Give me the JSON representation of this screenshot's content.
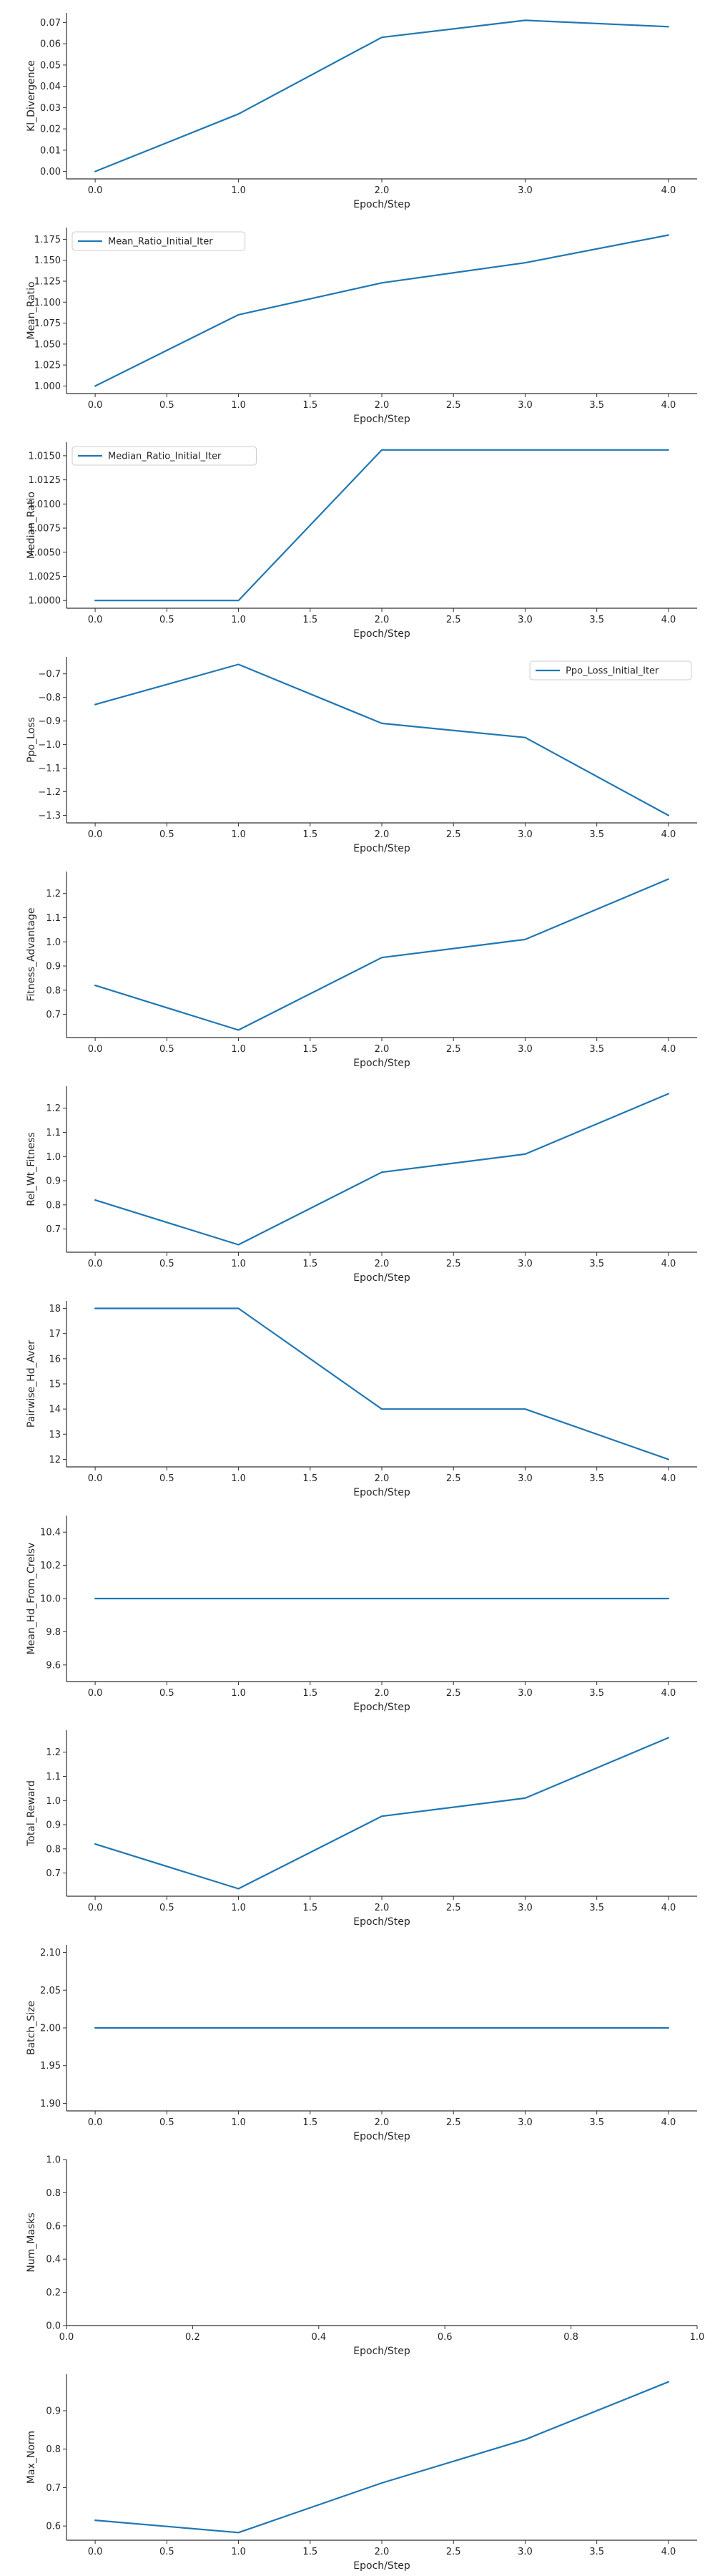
{
  "colors": {
    "series": "#1f77b4",
    "spine": "#333333",
    "text": "#262626"
  },
  "chart_data": [
    {
      "type": "line",
      "name": "kl",
      "x": [
        0,
        1,
        2,
        3,
        4
      ],
      "series": [
        {
          "name": "",
          "values": [
            0.0,
            0.027,
            0.063,
            0.071,
            0.068
          ]
        }
      ],
      "xlabel": "Epoch/Step",
      "ylabel": "Kl_Divergence",
      "xlim": [
        -0.2,
        4.2
      ],
      "ylim": [
        -0.0035,
        0.0745
      ],
      "xticks": [
        0,
        1,
        2,
        3,
        4
      ],
      "xtick_labels": [
        "0.0",
        "1.0",
        "2.0",
        "3.0",
        "4.0"
      ],
      "yticks": [
        0,
        0.01,
        0.02,
        0.03,
        0.04,
        0.05,
        0.06,
        0.07
      ],
      "ytick_labels": [
        "0.00",
        "0.01",
        "0.02",
        "0.03",
        "0.04",
        "0.05",
        "0.06",
        "0.07"
      ],
      "legend": null
    },
    {
      "type": "line",
      "name": "mean-ratio",
      "x": [
        0,
        1,
        2,
        3,
        4
      ],
      "series": [
        {
          "name": "Mean_Ratio_Initial_Iter",
          "values": [
            1.0,
            1.085,
            1.123,
            1.147,
            1.18
          ]
        }
      ],
      "xlabel": "Epoch/Step",
      "ylabel": "Mean_Ratio",
      "xlim": [
        -0.2,
        4.2
      ],
      "ylim": [
        0.991,
        1.189
      ],
      "xticks": [
        0,
        0.5,
        1,
        1.5,
        2,
        2.5,
        3,
        3.5,
        4
      ],
      "xtick_labels": [
        "0.0",
        "0.5",
        "1.0",
        "1.5",
        "2.0",
        "2.5",
        "3.0",
        "3.5",
        "4.0"
      ],
      "yticks": [
        1.0,
        1.025,
        1.05,
        1.075,
        1.1,
        1.125,
        1.15,
        1.175
      ],
      "ytick_labels": [
        "1.000",
        "1.025",
        "1.050",
        "1.075",
        "1.100",
        "1.125",
        "1.150",
        "1.175"
      ],
      "legend": "top-left"
    },
    {
      "type": "line",
      "name": "median-ratio",
      "x": [
        0,
        1,
        2,
        3,
        4
      ],
      "series": [
        {
          "name": "Median_Ratio_Initial_Iter",
          "values": [
            1.0,
            1.0,
            1.0156,
            1.0156,
            1.0156
          ]
        }
      ],
      "xlabel": "Epoch/Step",
      "ylabel": "Median_Ratio",
      "xlim": [
        -0.2,
        4.2
      ],
      "ylim": [
        0.9992,
        1.0164
      ],
      "xticks": [
        0,
        0.5,
        1,
        1.5,
        2,
        2.5,
        3,
        3.5,
        4
      ],
      "xtick_labels": [
        "0.0",
        "0.5",
        "1.0",
        "1.5",
        "2.0",
        "2.5",
        "3.0",
        "3.5",
        "4.0"
      ],
      "yticks": [
        1.0,
        1.0025,
        1.005,
        1.0075,
        1.01,
        1.0125,
        1.015
      ],
      "ytick_labels": [
        "1.0000",
        "1.0025",
        "1.0050",
        "1.0075",
        "1.0100",
        "1.0125",
        "1.0150"
      ],
      "legend": "top-left"
    },
    {
      "type": "line",
      "name": "ppo-loss",
      "x": [
        0,
        1,
        2,
        3,
        4
      ],
      "series": [
        {
          "name": "Ppo_Loss_Initial_Iter",
          "values": [
            -0.83,
            -0.66,
            -0.91,
            -0.97,
            -1.3
          ]
        }
      ],
      "xlabel": "Epoch/Step",
      "ylabel": "Ppo_Loss",
      "xlim": [
        -0.2,
        4.2
      ],
      "ylim": [
        -1.332,
        -0.628
      ],
      "xticks": [
        0,
        0.5,
        1,
        1.5,
        2,
        2.5,
        3,
        3.5,
        4
      ],
      "xtick_labels": [
        "0.0",
        "0.5",
        "1.0",
        "1.5",
        "2.0",
        "2.5",
        "3.0",
        "3.5",
        "4.0"
      ],
      "yticks": [
        -0.7,
        -0.8,
        -0.9,
        -1.0,
        -1.1,
        -1.2,
        -1.3
      ],
      "ytick_labels": [
        "−0.7",
        "−0.8",
        "−0.9",
        "−1.0",
        "−1.1",
        "−1.2",
        "−1.3"
      ],
      "legend": "top-right"
    },
    {
      "type": "line",
      "name": "fitness-advantage",
      "x": [
        0,
        1,
        2,
        3,
        4
      ],
      "series": [
        {
          "name": "",
          "values": [
            0.82,
            0.635,
            0.935,
            1.01,
            1.26
          ]
        }
      ],
      "xlabel": "Epoch/Step",
      "ylabel": "Fitness_Advantage",
      "xlim": [
        -0.2,
        4.2
      ],
      "ylim": [
        0.604,
        1.291
      ],
      "xticks": [
        0,
        0.5,
        1,
        1.5,
        2,
        2.5,
        3,
        3.5,
        4
      ],
      "xtick_labels": [
        "0.0",
        "0.5",
        "1.0",
        "1.5",
        "2.0",
        "2.5",
        "3.0",
        "3.5",
        "4.0"
      ],
      "yticks": [
        0.7,
        0.8,
        0.9,
        1.0,
        1.1,
        1.2
      ],
      "ytick_labels": [
        "0.7",
        "0.8",
        "0.9",
        "1.0",
        "1.1",
        "1.2"
      ],
      "legend": null
    },
    {
      "type": "line",
      "name": "rel-wt-fitness",
      "x": [
        0,
        1,
        2,
        3,
        4
      ],
      "series": [
        {
          "name": "",
          "values": [
            0.82,
            0.635,
            0.935,
            1.01,
            1.26
          ]
        }
      ],
      "xlabel": "Epoch/Step",
      "ylabel": "Rel_Wt_Fitness",
      "xlim": [
        -0.2,
        4.2
      ],
      "ylim": [
        0.604,
        1.291
      ],
      "xticks": [
        0,
        0.5,
        1,
        1.5,
        2,
        2.5,
        3,
        3.5,
        4
      ],
      "xtick_labels": [
        "0.0",
        "0.5",
        "1.0",
        "1.5",
        "2.0",
        "2.5",
        "3.0",
        "3.5",
        "4.0"
      ],
      "yticks": [
        0.7,
        0.8,
        0.9,
        1.0,
        1.1,
        1.2
      ],
      "ytick_labels": [
        "0.7",
        "0.8",
        "0.9",
        "1.0",
        "1.1",
        "1.2"
      ],
      "legend": null
    },
    {
      "type": "line",
      "name": "pairwise-hd",
      "x": [
        0,
        1,
        2,
        3,
        4
      ],
      "series": [
        {
          "name": "",
          "values": [
            18,
            18,
            14,
            14,
            12
          ]
        }
      ],
      "xlabel": "Epoch/Step",
      "ylabel": "Pairwise_Hd_Aver",
      "xlim": [
        -0.2,
        4.2
      ],
      "ylim": [
        11.7,
        18.3
      ],
      "xticks": [
        0,
        0.5,
        1,
        1.5,
        2,
        2.5,
        3,
        3.5,
        4
      ],
      "xtick_labels": [
        "0.0",
        "0.5",
        "1.0",
        "1.5",
        "2.0",
        "2.5",
        "3.0",
        "3.5",
        "4.0"
      ],
      "yticks": [
        12,
        13,
        14,
        15,
        16,
        17,
        18
      ],
      "ytick_labels": [
        "12",
        "13",
        "14",
        "15",
        "16",
        "17",
        "18"
      ],
      "legend": null
    },
    {
      "type": "line",
      "name": "mean-hd-crelsv",
      "x": [
        0,
        1,
        2,
        3,
        4
      ],
      "series": [
        {
          "name": "",
          "values": [
            10,
            10,
            10,
            10,
            10
          ]
        }
      ],
      "xlabel": "Epoch/Step",
      "ylabel": "Mean_Hd_From_Crelsv",
      "xlim": [
        -0.2,
        4.2
      ],
      "ylim": [
        9.5,
        10.5
      ],
      "xticks": [
        0,
        0.5,
        1,
        1.5,
        2,
        2.5,
        3,
        3.5,
        4
      ],
      "xtick_labels": [
        "0.0",
        "0.5",
        "1.0",
        "1.5",
        "2.0",
        "2.5",
        "3.0",
        "3.5",
        "4.0"
      ],
      "yticks": [
        9.6,
        9.8,
        10.0,
        10.2,
        10.4
      ],
      "ytick_labels": [
        "9.6",
        "9.8",
        "10.0",
        "10.2",
        "10.4"
      ],
      "legend": null
    },
    {
      "type": "line",
      "name": "total-reward",
      "x": [
        0,
        1,
        2,
        3,
        4
      ],
      "series": [
        {
          "name": "",
          "values": [
            0.82,
            0.635,
            0.935,
            1.01,
            1.26
          ]
        }
      ],
      "xlabel": "Epoch/Step",
      "ylabel": "Total_Reward",
      "xlim": [
        -0.2,
        4.2
      ],
      "ylim": [
        0.604,
        1.291
      ],
      "xticks": [
        0,
        0.5,
        1,
        1.5,
        2,
        2.5,
        3,
        3.5,
        4
      ],
      "xtick_labels": [
        "0.0",
        "0.5",
        "1.0",
        "1.5",
        "2.0",
        "2.5",
        "3.0",
        "3.5",
        "4.0"
      ],
      "yticks": [
        0.7,
        0.8,
        0.9,
        1.0,
        1.1,
        1.2
      ],
      "ytick_labels": [
        "0.7",
        "0.8",
        "0.9",
        "1.0",
        "1.1",
        "1.2"
      ],
      "legend": null
    },
    {
      "type": "line",
      "name": "batch-size",
      "x": [
        0,
        1,
        2,
        3,
        4
      ],
      "series": [
        {
          "name": "",
          "values": [
            2,
            2,
            2,
            2,
            2
          ]
        }
      ],
      "xlabel": "Epoch/Step",
      "ylabel": "Batch_Size",
      "xlim": [
        -0.2,
        4.2
      ],
      "ylim": [
        1.89,
        2.11
      ],
      "xticks": [
        0,
        0.5,
        1,
        1.5,
        2,
        2.5,
        3,
        3.5,
        4
      ],
      "xtick_labels": [
        "0.0",
        "0.5",
        "1.0",
        "1.5",
        "2.0",
        "2.5",
        "3.0",
        "3.5",
        "4.0"
      ],
      "yticks": [
        1.9,
        1.95,
        2.0,
        2.05,
        2.1
      ],
      "ytick_labels": [
        "1.90",
        "1.95",
        "2.00",
        "2.05",
        "2.10"
      ],
      "legend": null
    },
    {
      "type": "line",
      "name": "num-masks",
      "x": [],
      "series": [],
      "xlabel": "Epoch/Step",
      "ylabel": "Num_Masks",
      "xlim": [
        0,
        1
      ],
      "ylim": [
        0,
        1
      ],
      "xticks": [
        0,
        0.2,
        0.4,
        0.6,
        0.8,
        1.0
      ],
      "xtick_labels": [
        "0.0",
        "0.2",
        "0.4",
        "0.6",
        "0.8",
        "1.0"
      ],
      "yticks": [
        0,
        0.2,
        0.4,
        0.6,
        0.8,
        1.0
      ],
      "ytick_labels": [
        "0.0",
        "0.2",
        "0.4",
        "0.6",
        "0.8",
        "1.0"
      ],
      "legend": null
    },
    {
      "type": "line",
      "name": "max-norm",
      "x": [
        0,
        1,
        2,
        3,
        4
      ],
      "series": [
        {
          "name": "",
          "values": [
            0.615,
            0.583,
            0.712,
            0.825,
            0.975
          ]
        }
      ],
      "xlabel": "Epoch/Step",
      "ylabel": "Max_Norm",
      "xlim": [
        -0.2,
        4.2
      ],
      "ylim": [
        0.563,
        0.995
      ],
      "xticks": [
        0,
        0.5,
        1,
        1.5,
        2,
        2.5,
        3,
        3.5,
        4
      ],
      "xtick_labels": [
        "0.0",
        "0.5",
        "1.0",
        "1.5",
        "2.0",
        "2.5",
        "3.0",
        "3.5",
        "4.0"
      ],
      "yticks": [
        0.6,
        0.7,
        0.8,
        0.9
      ],
      "ytick_labels": [
        "0.6",
        "0.7",
        "0.8",
        "0.9"
      ],
      "legend": null
    }
  ]
}
